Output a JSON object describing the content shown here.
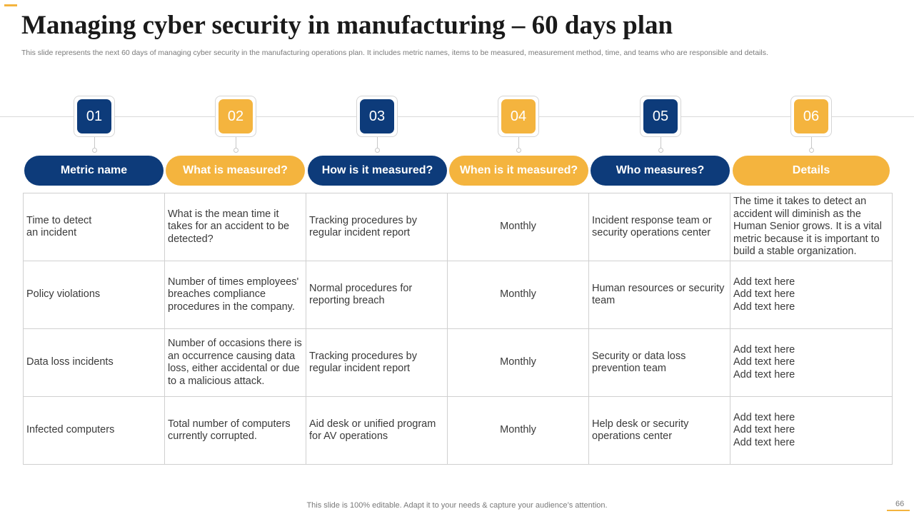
{
  "slide": {
    "title": "Managing cyber security in manufacturing – 60 days plan",
    "subtitle": "This slide represents the next 60 days of managing cyber security in the manufacturing operations plan. It includes metric names, items to be measured, measurement method, time, and teams who are responsible and details.",
    "footer": "This slide is 100% editable. Adapt it to your needs & capture your audience’s attention.",
    "page_number": "66"
  },
  "colors": {
    "blue": "#0d3b7a",
    "gold": "#f4b43e"
  },
  "steps": [
    {
      "number": "01",
      "label": "Metric name"
    },
    {
      "number": "02",
      "label": "What is measured?"
    },
    {
      "number": "03",
      "label": "How is it measured?"
    },
    {
      "number": "04",
      "label": "When is it measured?"
    },
    {
      "number": "05",
      "label": "Who measures?"
    },
    {
      "number": "06",
      "label": "Details"
    }
  ],
  "rows": [
    {
      "metric": "Time to detect an incident",
      "what": "What is the mean time it takes for an accident to be detected?",
      "how": "Tracking procedures by regular incident report",
      "when": "Monthly",
      "who": "Incident response team or security operations center",
      "details": "The time it takes to detect an accident will diminish as the Human Senior grows. It is a vital metric because it is important to build a stable organization."
    },
    {
      "metric": "Policy violations",
      "what": "Number of times employees' breaches compliance procedures in the company.",
      "how": "Normal procedures for reporting breach",
      "when": "Monthly",
      "who": "Human resources or security team",
      "details": [
        "Add text here",
        "Add text here",
        "Add text here"
      ]
    },
    {
      "metric": "Data loss incidents",
      "what": "Number of occasions there is an occurrence causing data loss, either accidental or due to a malicious attack.",
      "how": "Tracking procedures by regular incident report",
      "when": "Monthly",
      "who": "Security or data loss prevention team",
      "details": [
        "Add text here",
        "Add text here",
        "Add text here"
      ]
    },
    {
      "metric": "Infected computers",
      "what": "Total number of computers currently corrupted.",
      "how": "Aid desk or unified program for AV operations",
      "when": "Monthly",
      "who": "Help desk or security operations center",
      "details": [
        "Add text here",
        "Add text here",
        "Add text here"
      ]
    }
  ]
}
